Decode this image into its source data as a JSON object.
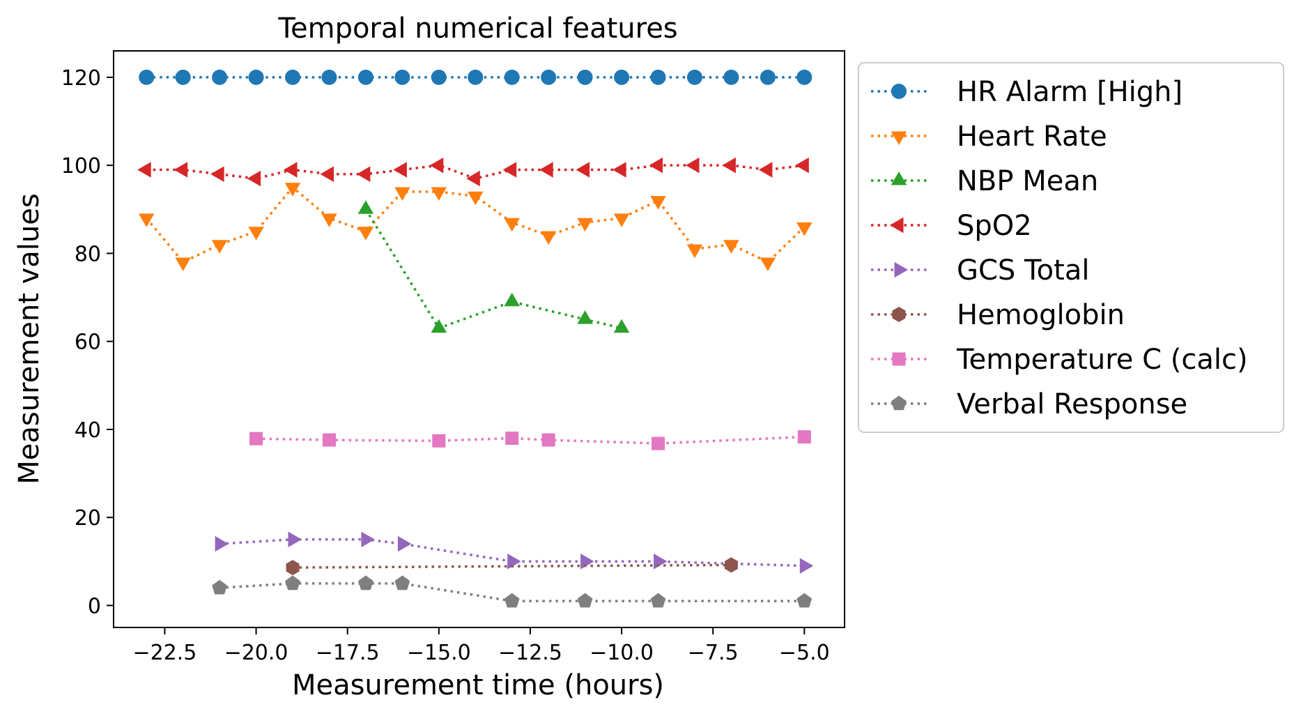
{
  "chart_data": {
    "type": "line",
    "title": "Temporal numerical features",
    "xlabel": "Measurement time (hours)",
    "ylabel": "Measurement values",
    "xlim": [
      -23.9,
      -3.9
    ],
    "ylim": [
      -5,
      126
    ],
    "xticks": [
      -22.5,
      -20.0,
      -17.5,
      -15.0,
      -12.5,
      -10.0,
      -7.5,
      -5.0
    ],
    "xtick_labels": [
      "−22.5",
      "−20.0",
      "−17.5",
      "−15.0",
      "−12.5",
      "−10.0",
      "−7.5",
      "−5.0"
    ],
    "yticks": [
      0,
      20,
      40,
      60,
      80,
      100,
      120
    ],
    "ytick_labels": [
      "0",
      "20",
      "40",
      "60",
      "80",
      "100",
      "120"
    ],
    "grid": false,
    "legend_position": "outside-right",
    "line_style": "dotted",
    "series": [
      {
        "name": "HR Alarm [High]",
        "color": "#1f77b4",
        "marker": "circle",
        "x": [
          -23,
          -22,
          -21,
          -20,
          -19,
          -18,
          -17,
          -16,
          -15,
          -14,
          -13,
          -12,
          -11,
          -10,
          -9,
          -8,
          -7,
          -6,
          -5
        ],
        "y": [
          120,
          120,
          120,
          120,
          120,
          120,
          120,
          120,
          120,
          120,
          120,
          120,
          120,
          120,
          120,
          120,
          120,
          120,
          120
        ]
      },
      {
        "name": "Heart Rate",
        "color": "#ff7f0e",
        "marker": "triangle-down",
        "x": [
          -23,
          -22,
          -21,
          -20,
          -19,
          -18,
          -17,
          -16,
          -15,
          -14,
          -13,
          -12,
          -11,
          -10,
          -9,
          -8,
          -7,
          -6,
          -5
        ],
        "y": [
          88,
          78,
          82,
          85,
          95,
          88,
          85,
          94,
          94,
          93,
          87,
          84,
          87,
          88,
          92,
          81,
          82,
          78,
          86
        ]
      },
      {
        "name": "NBP Mean",
        "color": "#2ca02c",
        "marker": "triangle-up",
        "x": [
          -17,
          -15,
          -13,
          -11,
          -10
        ],
        "y": [
          90,
          63,
          69,
          65,
          63
        ]
      },
      {
        "name": "SpO2",
        "color": "#d62728",
        "marker": "triangle-left",
        "x": [
          -23,
          -22,
          -21,
          -20,
          -19,
          -18,
          -17,
          -16,
          -15,
          -14,
          -13,
          -12,
          -11,
          -10,
          -9,
          -8,
          -7,
          -6,
          -5
        ],
        "y": [
          99,
          99,
          98,
          97,
          99,
          98,
          98,
          99,
          100,
          97,
          99,
          99,
          99,
          99,
          100,
          100,
          100,
          99,
          100
        ]
      },
      {
        "name": "GCS Total",
        "color": "#9467bd",
        "marker": "triangle-right",
        "x": [
          -21,
          -19,
          -17,
          -16,
          -13,
          -11,
          -9,
          -5
        ],
        "y": [
          14,
          15,
          15,
          14,
          10,
          10,
          10,
          9
        ]
      },
      {
        "name": "Hemoglobin",
        "color": "#8c564b",
        "marker": "hexagon",
        "x": [
          -19,
          -7
        ],
        "y": [
          8.6,
          9.2
        ]
      },
      {
        "name": "Temperature C (calc)",
        "color": "#e377c2",
        "marker": "square",
        "x": [
          -20,
          -18,
          -15,
          -13,
          -12,
          -9,
          -5
        ],
        "y": [
          37.9,
          37.6,
          37.4,
          38.0,
          37.6,
          36.8,
          38.3
        ]
      },
      {
        "name": "Verbal Response",
        "color": "#7f7f7f",
        "marker": "pentagon",
        "x": [
          -21,
          -19,
          -17,
          -16,
          -13,
          -11,
          -9,
          -5
        ],
        "y": [
          4,
          5,
          5,
          5,
          1,
          1,
          1,
          1
        ]
      }
    ]
  }
}
